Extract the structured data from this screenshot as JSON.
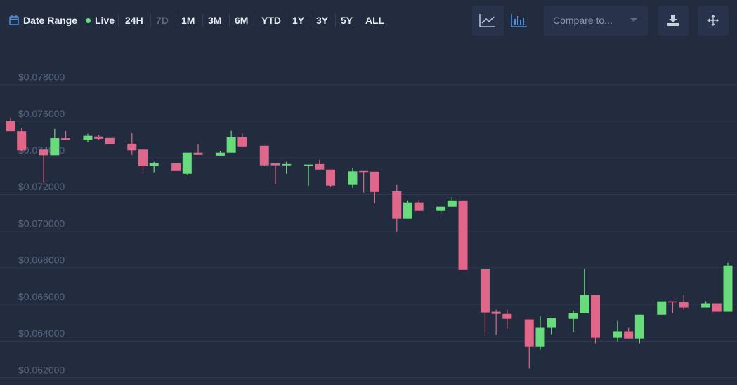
{
  "toolbar": {
    "date_range": "Date Range",
    "live": "Live",
    "ranges": [
      "24H",
      "7D",
      "1M",
      "3M",
      "6M",
      "YTD",
      "1Y",
      "3Y",
      "5Y",
      "ALL"
    ],
    "compare": "Compare to..."
  },
  "chart_data": {
    "type": "candlestick",
    "up_color": "#68dc7c",
    "down_color": "#e0668a",
    "grid": true,
    "ylim": [
      0.0616,
      0.0783
    ],
    "yticks": [
      {
        "value": 0.062,
        "label": "$0.062000"
      },
      {
        "value": 0.064,
        "label": "$0.064000"
      },
      {
        "value": 0.066,
        "label": "$0.066000"
      },
      {
        "value": 0.068,
        "label": "$0.068000"
      },
      {
        "value": 0.07,
        "label": "$0.070000"
      },
      {
        "value": 0.072,
        "label": "$0.072000"
      },
      {
        "value": 0.074,
        "label": "$0.074000"
      },
      {
        "value": 0.076,
        "label": "$0.076000"
      },
      {
        "value": 0.078,
        "label": "$0.078000"
      }
    ],
    "open": [
      0.07602,
      0.07546,
      null,
      0.07446,
      0.07415,
      0.07508,
      null,
      0.07498,
      0.07517,
      0.07509,
      null,
      0.07478,
      0.07446,
      0.07356,
      null,
      0.07371,
      0.07314,
      0.07429,
      null,
      0.07413,
      0.07429,
      0.07513,
      null,
      0.07467,
      0.07371,
      0.0736,
      null,
      0.0736,
      0.07367,
      0.07337,
      null,
      0.07253,
      0.07329,
      0.07325,
      null,
      0.07218,
      0.07069,
      0.07157,
      null,
      0.07111,
      0.07134,
      0.07168,
      null,
      0.06793,
      0.0656,
      0.06548,
      null,
      0.06518,
      0.06368,
      0.06472,
      null,
      0.06521,
      0.06552,
      0.06652,
      null,
      0.06418,
      0.06453,
      0.06414,
      null,
      0.06544,
      0.06617,
      0.06613,
      null,
      0.06583,
      0.06606,
      0.0656
    ],
    "high": [
      0.0762,
      0.07563,
      null,
      0.07446,
      0.07559,
      0.07547,
      null,
      0.07532,
      0.07525,
      0.07509,
      null,
      0.07536,
      0.07446,
      0.07379,
      null,
      0.07371,
      0.07429,
      0.07474,
      null,
      0.07436,
      0.07547,
      0.07536,
      null,
      0.07467,
      0.07371,
      0.07379,
      null,
      0.07364,
      0.0739,
      0.07337,
      null,
      0.07344,
      0.07329,
      0.07325,
      null,
      0.07253,
      0.07168,
      0.07172,
      null,
      0.07134,
      0.07188,
      0.07168,
      null,
      0.06793,
      0.06571,
      0.06571,
      null,
      0.06518,
      0.06537,
      0.06525,
      null,
      0.06567,
      0.06793,
      0.06652,
      null,
      0.0651,
      0.06472,
      0.06544,
      null,
      0.06617,
      0.06617,
      0.06652,
      null,
      0.06617,
      0.06606,
      0.06827
    ],
    "low": [
      0.07546,
      0.07435,
      null,
      0.07262,
      0.07415,
      0.07498,
      null,
      0.07486,
      0.075,
      0.07475,
      null,
      0.07417,
      0.07317,
      0.07322,
      null,
      0.07329,
      0.0731,
      0.07417,
      null,
      0.07413,
      0.07429,
      0.07463,
      null,
      0.07356,
      0.07257,
      0.07314,
      null,
      0.07249,
      0.07337,
      0.07241,
      null,
      0.07237,
      0.07211,
      0.07153,
      null,
      0.06996,
      0.07069,
      0.07111,
      null,
      0.07096,
      0.07134,
      0.06789,
      null,
      0.0643,
      0.06434,
      0.06468,
      null,
      0.0625,
      0.06353,
      0.06437,
      null,
      0.06449,
      0.06552,
      0.06388,
      null,
      0.06399,
      0.06414,
      0.06388,
      null,
      0.06544,
      0.06552,
      0.06571,
      null,
      0.06583,
      0.0656,
      0.0656
    ],
    "close": [
      0.07546,
      0.07442,
      null,
      0.07415,
      0.07508,
      0.07498,
      null,
      0.07521,
      0.07505,
      0.07475,
      null,
      0.07442,
      0.07356,
      0.07371,
      null,
      0.07329,
      0.07429,
      0.07417,
      null,
      0.07429,
      0.07513,
      0.07463,
      null,
      0.0736,
      0.0736,
      0.07367,
      null,
      0.07364,
      0.07337,
      0.07249,
      null,
      0.07327,
      0.07325,
      0.07214,
      null,
      0.07069,
      0.07157,
      0.07111,
      null,
      0.07134,
      0.07168,
      0.06789,
      null,
      0.06556,
      0.06548,
      0.06521,
      null,
      0.06368,
      0.06472,
      0.06525,
      null,
      0.06552,
      0.06652,
      0.06418,
      null,
      0.06453,
      0.06414,
      0.06544,
      null,
      0.06617,
      0.06613,
      0.06583,
      null,
      0.06606,
      0.0656,
      0.06812
    ]
  }
}
